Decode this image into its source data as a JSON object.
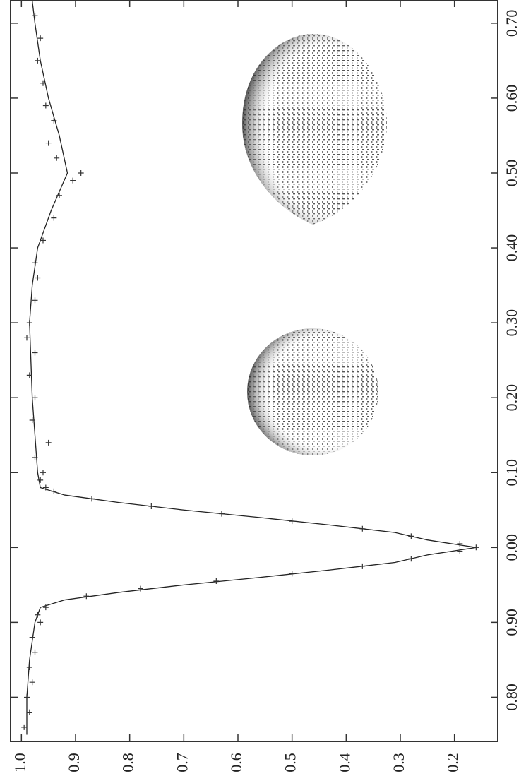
{
  "chart_data": {
    "type": "line",
    "xlim": [
      0.741,
      1.731
    ],
    "xticks": [
      {
        "value": 0.8,
        "label": "0.80"
      },
      {
        "value": 0.9,
        "label": "0.90"
      },
      {
        "value": 1.0,
        "label": "0.00"
      },
      {
        "value": 1.1,
        "label": "0.10"
      },
      {
        "value": 1.2,
        "label": "0.20"
      },
      {
        "value": 1.3,
        "label": "0.30"
      },
      {
        "value": 1.4,
        "label": "0.40"
      },
      {
        "value": 1.5,
        "label": "0.50"
      },
      {
        "value": 1.6,
        "label": "0.60"
      },
      {
        "value": 1.7,
        "label": "0.70"
      }
    ],
    "ylim": [
      1.02,
      0.12
    ],
    "yticks": [
      {
        "value": 1,
        "label": "1.0"
      },
      0.9,
      0.8,
      0.7,
      0.6,
      0.5,
      0.4,
      0.3,
      0.2
    ],
    "series": [
      {
        "type": "line",
        "color": "#222",
        "x": [
          0.75,
          0.8,
          0.85,
          0.9,
          0.92,
          0.93,
          0.94,
          0.95,
          0.96,
          0.97,
          0.98,
          0.99,
          1.0,
          1.01,
          1.02,
          1.03,
          1.04,
          1.05,
          1.06,
          1.07,
          1.08,
          1.1,
          1.15,
          1.2,
          1.3,
          1.35,
          1.4,
          1.45,
          1.5,
          1.55,
          1.6,
          1.65,
          1.7,
          1.73
        ],
        "values": [
          0.99,
          0.99,
          0.985,
          0.975,
          0.965,
          0.92,
          0.82,
          0.7,
          0.56,
          0.43,
          0.31,
          0.25,
          0.16,
          0.25,
          0.31,
          0.43,
          0.56,
          0.7,
          0.82,
          0.92,
          0.965,
          0.97,
          0.975,
          0.98,
          0.985,
          0.98,
          0.97,
          0.945,
          0.915,
          0.93,
          0.95,
          0.965,
          0.975,
          0.98
        ]
      },
      {
        "type": "scatter",
        "color": "#333",
        "x": [
          0.76,
          0.78,
          0.8,
          0.82,
          0.84,
          0.86,
          0.88,
          0.9,
          0.91,
          0.92,
          0.935,
          0.945,
          0.955,
          0.965,
          0.975,
          0.985,
          0.995,
          1.0,
          1.005,
          1.015,
          1.025,
          1.035,
          1.045,
          1.055,
          1.065,
          1.075,
          1.08,
          1.09,
          1.1,
          1.12,
          1.14,
          1.17,
          1.2,
          1.23,
          1.26,
          1.28,
          1.3,
          1.33,
          1.36,
          1.38,
          1.41,
          1.44,
          1.47,
          1.49,
          1.5,
          1.52,
          1.54,
          1.57,
          1.59,
          1.62,
          1.65,
          1.68,
          1.71,
          1.73
        ],
        "values": [
          0.995,
          0.985,
          0.99,
          0.98,
          0.985,
          0.975,
          0.98,
          0.965,
          0.97,
          0.955,
          0.88,
          0.78,
          0.64,
          0.5,
          0.37,
          0.28,
          0.19,
          0.16,
          0.19,
          0.28,
          0.37,
          0.5,
          0.63,
          0.76,
          0.87,
          0.94,
          0.955,
          0.965,
          0.96,
          0.975,
          0.95,
          0.98,
          0.975,
          0.985,
          0.975,
          0.99,
          0.985,
          0.975,
          0.97,
          0.975,
          0.96,
          0.94,
          0.93,
          0.905,
          0.89,
          0.935,
          0.95,
          0.94,
          0.955,
          0.96,
          0.97,
          0.965,
          0.975,
          0.98
        ]
      }
    ]
  }
}
